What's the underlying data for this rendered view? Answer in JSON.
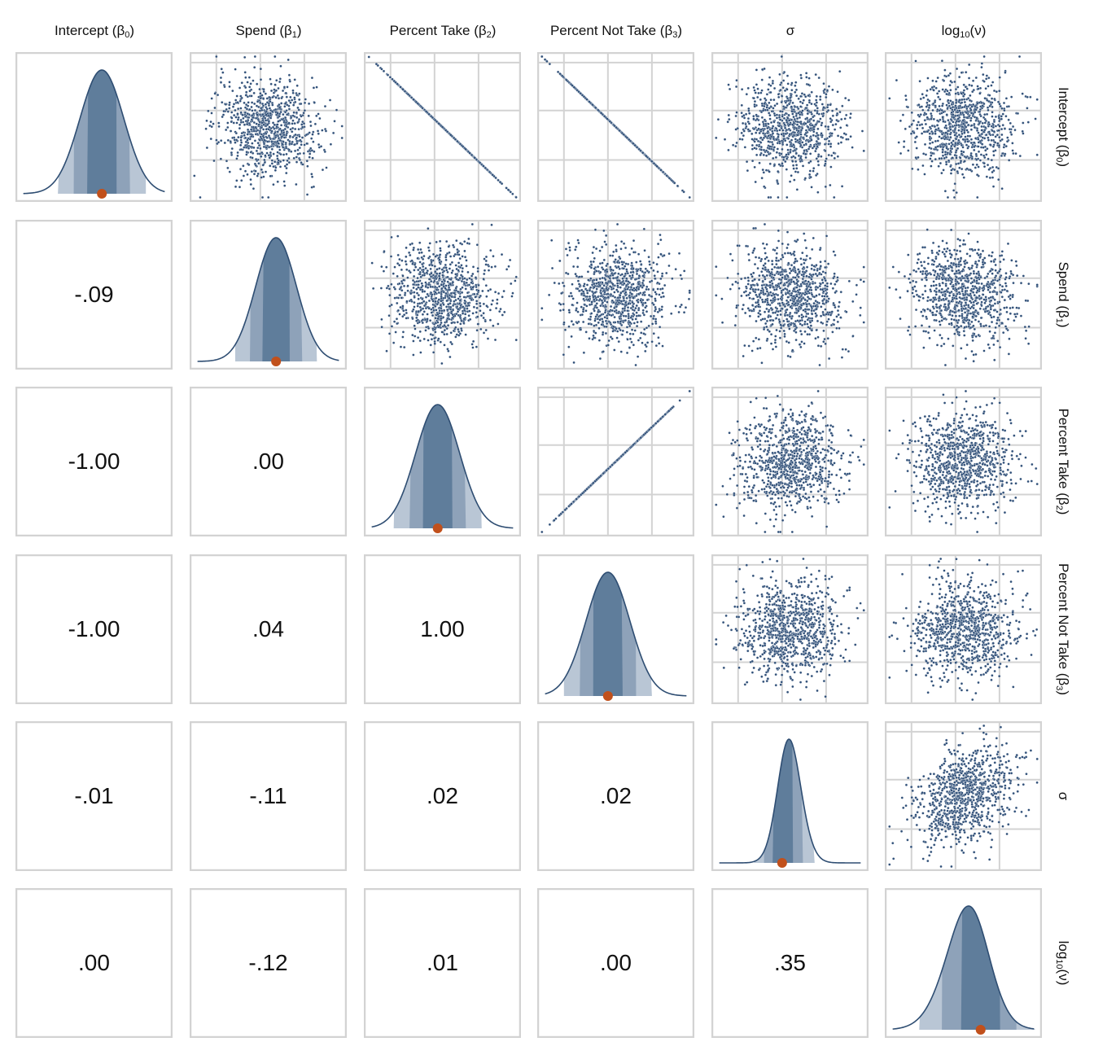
{
  "chart_data": {
    "type": "pairs",
    "title": "",
    "variables": [
      {
        "name": "Intercept",
        "base": "Intercept (β",
        "sub": "0",
        "close": ")",
        "center": 0.55,
        "sd": 0.14,
        "skew": 0,
        "estimate": 0.55
      },
      {
        "name": "Spend",
        "base": "Spend (β",
        "sub": "1",
        "close": ")",
        "center": 0.55,
        "sd": 0.13,
        "skew": 0,
        "estimate": 0.55
      },
      {
        "name": "Percent Take",
        "base": "Percent Take (β",
        "sub": "2",
        "close": ")",
        "center": 0.47,
        "sd": 0.14,
        "skew": 0,
        "estimate": 0.47
      },
      {
        "name": "Percent Not Take",
        "base": "Percent Not Take (β",
        "sub": "3",
        "close": ")",
        "center": 0.45,
        "sd": 0.14,
        "skew": 0,
        "estimate": 0.45
      },
      {
        "name": "σ",
        "base": "σ",
        "sub": "",
        "close": "",
        "center": 0.45,
        "sd": 0.09,
        "skew": 0.5,
        "estimate": 0.45
      },
      {
        "name": "log10(ν)",
        "base": "log",
        "sub": "10",
        "close": "(ν)",
        "center": 0.62,
        "sd": 0.17,
        "skew": -0.6,
        "estimate": 0.61
      }
    ],
    "correlations": [
      [
        1,
        -0.09,
        -1.0,
        -1.0,
        -0.01,
        0.0
      ],
      [
        -0.09,
        1,
        0.0,
        0.04,
        -0.11,
        -0.12
      ],
      [
        -1.0,
        0.0,
        1,
        1.0,
        0.02,
        0.01
      ],
      [
        -1.0,
        0.04,
        1.0,
        1,
        0.02,
        0.0
      ],
      [
        -0.01,
        -0.11,
        0.02,
        0.02,
        1,
        0.35
      ],
      [
        0.0,
        -0.12,
        0.01,
        0.0,
        0.35,
        1
      ]
    ],
    "correlation_labels": [
      [
        "",
        "",
        "",
        "",
        "",
        ""
      ],
      [
        "-.09",
        "",
        "",
        "",
        "",
        ""
      ],
      [
        "-1.00",
        ".00",
        "",
        "",
        "",
        ""
      ],
      [
        "-1.00",
        ".04",
        "1.00",
        "",
        "",
        ""
      ],
      [
        "-.01",
        "-.11",
        ".02",
        ".02",
        "",
        ""
      ],
      [
        ".00",
        "-.12",
        ".01",
        ".00",
        ".35",
        ""
      ]
    ],
    "intervals": [
      0.5,
      0.8,
      0.95
    ],
    "colors": {
      "fill_dark": "#5f7d9b",
      "fill_mid": "#8ea2b9",
      "fill_light": "#b9c6d5",
      "line": "#2e4d72",
      "point": "#2f4f78",
      "estimate": "#c1501b",
      "grid": "#d3d3d3"
    }
  }
}
